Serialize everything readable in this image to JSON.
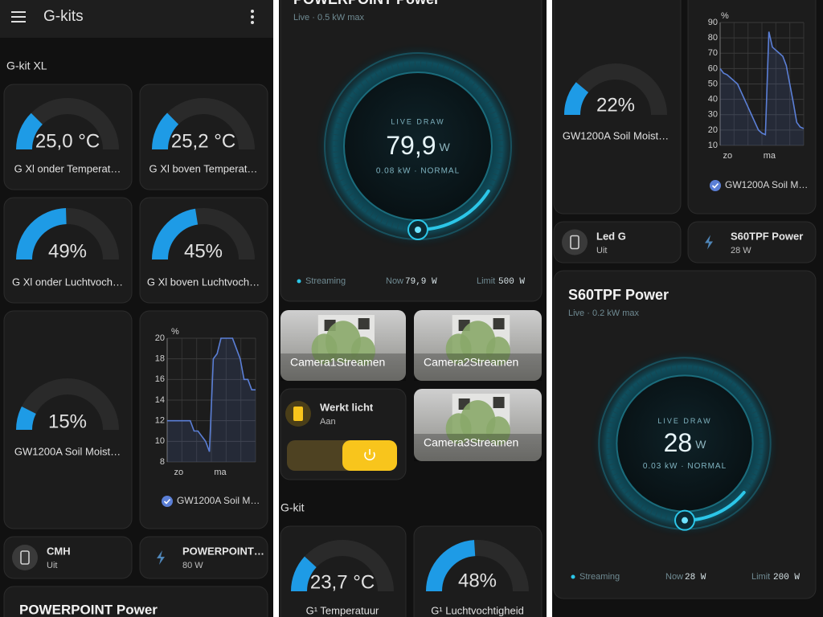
{
  "gauge_range": [
    0,
    100
  ],
  "column1": {
    "app_title": "G-kits",
    "section": "G-kit XL",
    "gauges": [
      {
        "value": 25.0,
        "label": "25,0 °C",
        "name": "G Xl onder Temperat…"
      },
      {
        "value": 25.2,
        "label": "25,2 °C",
        "name": "G Xl boven Temperat…"
      },
      {
        "value": 49,
        "label": "49%",
        "name": "G Xl onder Luchtvoch…"
      },
      {
        "value": 45,
        "label": "45%",
        "name": "G Xl boven Luchtvoch…"
      },
      {
        "value": 15,
        "label": "15%",
        "name": "GW1200A Soil Moist…"
      }
    ],
    "chart": {
      "type": "line",
      "unit": "%",
      "x_labels": [
        "zo",
        "ma"
      ],
      "ylim": [
        8,
        20
      ],
      "yticks": [
        8,
        10,
        12,
        14,
        16,
        18,
        20
      ],
      "series": [
        {
          "name": "GW1200A Soil M…",
          "color": "#5b7fd6",
          "values": [
            12,
            12,
            12,
            12,
            12,
            12,
            12,
            11,
            11,
            10.5,
            10,
            9,
            18,
            18.5,
            20,
            20,
            20,
            20,
            19,
            18,
            16,
            16,
            15,
            15
          ]
        }
      ]
    },
    "tiles": [
      {
        "name": "CMH",
        "state": "Uit"
      },
      {
        "name": "POWERPOINT…",
        "state": "80 W"
      }
    ],
    "card_title": "POWERPOINT Power"
  },
  "column2": {
    "power": {
      "title": "POWERPOINT Power",
      "subtitle": "Live · 0.5 kW max",
      "caption": "LIVE DRAW",
      "value": 79.9,
      "value_label": "79,9",
      "unit": "W",
      "detail": "0.08 kW · NORMAL",
      "status": "Streaming",
      "now_caption": "Now",
      "now": "79,9 W",
      "limit_caption": "Limit",
      "limit": {
        "value": 500,
        "label": "500 W"
      }
    },
    "cameras": [
      "Camera1Streamen",
      "Camera2Streamen",
      "Camera3Streamen"
    ],
    "switch": {
      "name": "Werkt licht",
      "state": "Aan"
    },
    "section": "G-kit",
    "gauges": [
      {
        "value": 23.7,
        "label": "23,7 °C",
        "name": "G¹ Temperatuur"
      },
      {
        "value": 48,
        "label": "48%",
        "name": "G¹ Luchtvochtigheid"
      }
    ]
  },
  "column3": {
    "gauge": {
      "value": 22,
      "label": "22%",
      "name": "GW1200A Soil Moist…"
    },
    "chart": {
      "type": "line",
      "unit": "%",
      "x_labels": [
        "zo",
        "ma"
      ],
      "ylim": [
        10,
        90
      ],
      "yticks": [
        10,
        20,
        30,
        40,
        50,
        60,
        70,
        80,
        90
      ],
      "series": [
        {
          "name": "GW1200A Soil M…",
          "color": "#5b7fd6",
          "values": [
            60,
            57,
            56,
            54,
            52,
            50,
            45,
            40,
            35,
            30,
            25,
            20,
            18,
            17,
            84,
            74,
            72,
            70,
            68,
            62,
            50,
            38,
            25,
            22,
            21
          ]
        }
      ]
    },
    "tiles": [
      {
        "name": "Led G",
        "state": "Uit"
      },
      {
        "name": "S60TPF Power",
        "state": "28 W"
      }
    ],
    "power": {
      "title": "S60TPF Power",
      "subtitle": "Live · 0.2 kW max",
      "caption": "LIVE DRAW",
      "value": 28,
      "value_label": "28",
      "unit": "W",
      "detail": "0.03 kW · NORMAL",
      "status": "Streaming",
      "now_caption": "Now",
      "now": "28 W",
      "limit_caption": "Limit",
      "limit": {
        "value": 200,
        "label": "200 W"
      }
    }
  }
}
